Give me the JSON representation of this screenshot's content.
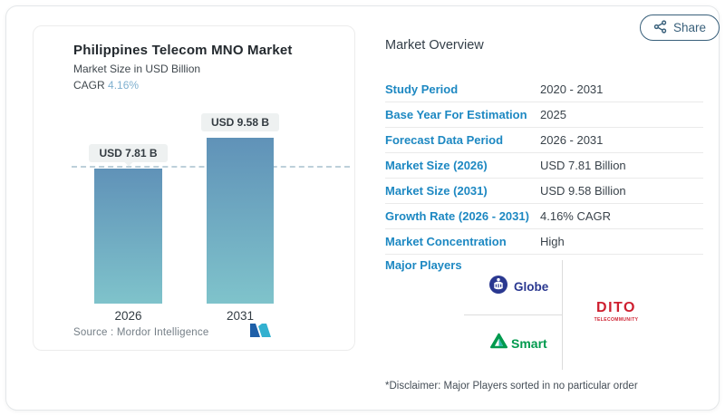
{
  "share_button": {
    "label": "Share",
    "icon": "share-icon"
  },
  "chart_card": {
    "title": "Philippines Telecom MNO Market",
    "subtitle": "Market Size in USD Billion",
    "cagr_label": "CAGR",
    "cagr_value": "4.16%",
    "source_label": "Source :",
    "source_value": "Mordor Intelligence",
    "logo": "mordor-intelligence-logo"
  },
  "chart_data": {
    "type": "bar",
    "title": "Philippines Telecom MNO Market",
    "subtitle": "Market Size in USD Billion",
    "unit": "USD Billion",
    "cagr": "4.16%",
    "categories": [
      "2026",
      "2031"
    ],
    "values": [
      7.81,
      9.58
    ],
    "value_labels": [
      "USD 7.81 B",
      "USD 9.58 B"
    ],
    "ylim": [
      0,
      10.5
    ],
    "grid": false,
    "reference_line": {
      "y": 7.81,
      "style": "dashed"
    },
    "bar_gradient": [
      "#6092b8",
      "#7fc3cb"
    ]
  },
  "market_overview": {
    "title": "Market Overview",
    "rows": [
      {
        "label": "Study Period",
        "value": "2020 - 2031"
      },
      {
        "label": "Base Year For Estimation",
        "value": "2025"
      },
      {
        "label": "Forecast Data Period",
        "value": "2026 - 2031"
      },
      {
        "label": "Market Size (2026)",
        "value": "USD 7.81 Billion"
      },
      {
        "label": "Market Size (2031)",
        "value": "USD 9.58 Billion"
      },
      {
        "label": "Growth Rate (2026 - 2031)",
        "value": "4.16% CAGR"
      },
      {
        "label": "Market Concentration",
        "value": "High"
      }
    ],
    "major_players": {
      "label": "Major Players",
      "players": [
        {
          "name": "Globe",
          "logo": "globe-logo"
        },
        {
          "name": "Smart",
          "logo": "smart-logo"
        },
        {
          "name": "DITO",
          "logo": "dito-logo",
          "subtext": "TELECOMMUNITY"
        }
      ]
    },
    "disclaimer": "*Disclaimer: Major Players sorted in no particular order"
  },
  "colors": {
    "accent_blue": "#1d88c2",
    "cagr_value_blue": "#7fb0cf",
    "bar_top": "#6092b8",
    "bar_bottom": "#7fc3cb",
    "dashed_line": "#bdd0da",
    "share_outline": "#39607b",
    "globe_navy": "#2a3890",
    "smart_green": "#019a4e",
    "dito_red": "#ce1f2f",
    "mordor_navy": "#1e5fa8",
    "mordor_teal": "#33b1d0"
  }
}
